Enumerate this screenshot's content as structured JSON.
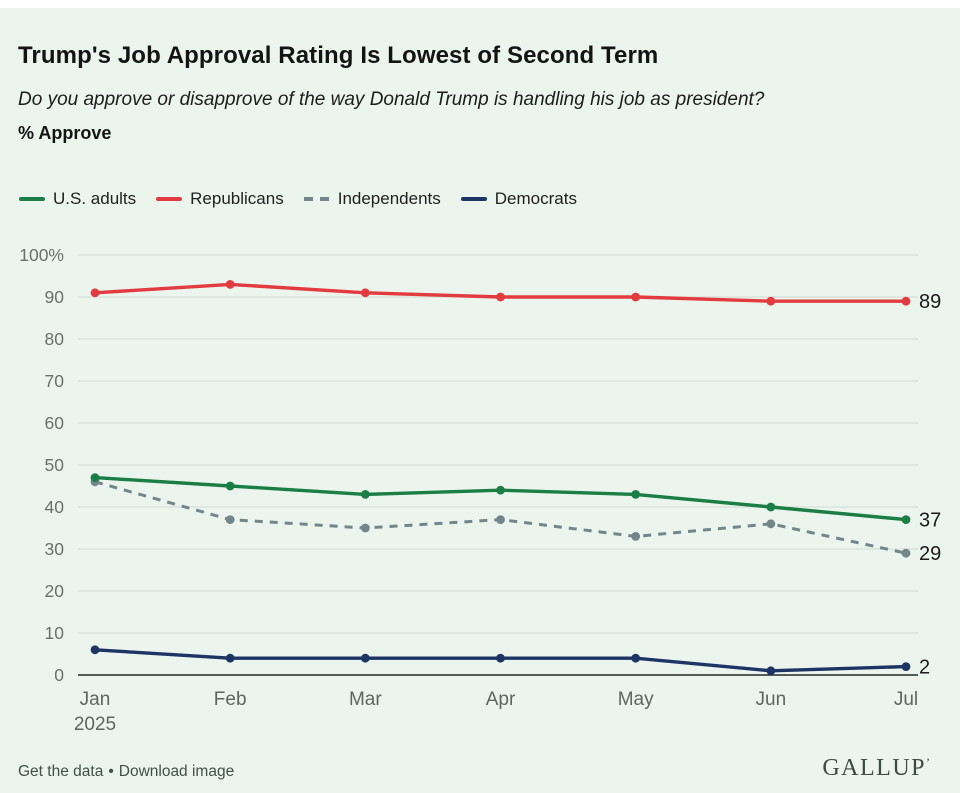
{
  "page": {
    "background": "#ebf4ed",
    "top_strip_color": "#ffffff"
  },
  "header": {
    "title": "Trump's Job Approval Rating Is Lowest of Second Term",
    "subtitle": "Do you approve or disapprove of the way Donald Trump is handling his job as president?",
    "metric_label": "% Approve"
  },
  "legend": {
    "items": [
      {
        "label": "U.S. adults",
        "color": "#1b7e46",
        "style": "solid"
      },
      {
        "label": "Republicans",
        "color": "#e23b40",
        "style": "solid"
      },
      {
        "label": "Independents",
        "color": "#73868a",
        "style": "dashed"
      },
      {
        "label": "Democrats",
        "color": "#1d3564",
        "style": "solid"
      }
    ]
  },
  "chart_data": {
    "type": "line",
    "title": "Trump's Job Approval Rating Is Lowest of Second Term",
    "ylabel": "% Approve",
    "x": [
      "Jan",
      "Feb",
      "Mar",
      "Apr",
      "May",
      "Jun",
      "Jul"
    ],
    "x_year_label": "2025",
    "ylim": [
      0,
      100
    ],
    "ytick_step": 10,
    "ytick_top_label": "100%",
    "grid": true,
    "legend_position": "top",
    "series": [
      {
        "name": "Republicans",
        "color": "#e23b40",
        "dashed": false,
        "values": [
          91,
          93,
          91,
          90,
          90,
          89,
          89
        ],
        "end_label": "89"
      },
      {
        "name": "Independents",
        "color": "#73868a",
        "dashed": true,
        "values": [
          46,
          37,
          35,
          37,
          33,
          36,
          29
        ],
        "end_label": "29"
      },
      {
        "name": "U.S. adults",
        "color": "#1b7e46",
        "dashed": false,
        "values": [
          47,
          45,
          43,
          44,
          43,
          40,
          37
        ],
        "end_label": "37"
      },
      {
        "name": "Democrats",
        "color": "#1d3564",
        "dashed": false,
        "values": [
          6,
          4,
          4,
          4,
          4,
          1,
          2
        ],
        "end_label": "2"
      }
    ]
  },
  "footer": {
    "link1": "Get the data",
    "separator": "•",
    "link2": "Download image",
    "brand": "GALLUP",
    "brand_mark": "’"
  }
}
